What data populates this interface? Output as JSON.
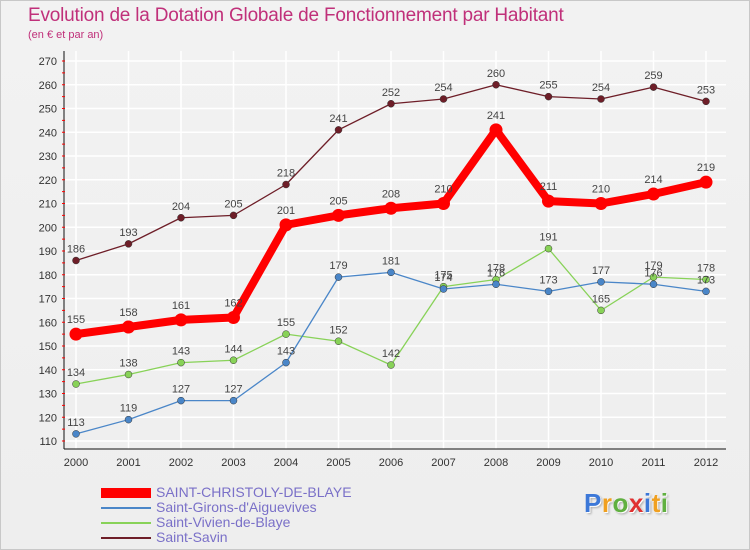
{
  "chart_data": {
    "type": "line",
    "title": "Evolution de la Dotation Globale de Fonctionnement par Habitant",
    "subtitle": "(en € et par an)",
    "categories": [
      "2000",
      "2001",
      "2002",
      "2003",
      "2004",
      "2005",
      "2006",
      "2007",
      "2008",
      "2009",
      "2010",
      "2011",
      "2012"
    ],
    "ylim": [
      110,
      270
    ],
    "yticks": [
      110,
      120,
      130,
      140,
      150,
      160,
      170,
      180,
      190,
      200,
      210,
      220,
      230,
      240,
      250,
      260,
      270
    ],
    "grid": true,
    "legend_position": "bottom-left",
    "series": [
      {
        "name": "Saint-Savin",
        "color": "#6e1e28",
        "values": [
          186,
          193,
          204,
          205,
          218,
          241,
          252,
          254,
          260,
          255,
          254,
          259,
          253
        ]
      },
      {
        "name": "Saint-Vivien-de-Blaye",
        "color": "#88d258",
        "values": [
          134,
          138,
          143,
          144,
          155,
          152,
          142,
          175,
          178,
          191,
          165,
          179,
          178
        ]
      },
      {
        "name": "Saint-Girons-d'Aiguevives",
        "color": "#4a86c8",
        "values": [
          113,
          119,
          127,
          127,
          143,
          179,
          181,
          174,
          176,
          173,
          177,
          176,
          173
        ]
      },
      {
        "name": "SAINT-CHRISTOLY-DE-BLAYE",
        "color": "#ff0000",
        "values": [
          155,
          158,
          161,
          162,
          201,
          205,
          208,
          210,
          241,
          211,
          210,
          214,
          219
        ]
      }
    ]
  },
  "legend": {
    "items": [
      {
        "label": "SAINT-CHRISTOLY-DE-BLAYE",
        "color": "#ff0000"
      },
      {
        "label": "Saint-Girons-d'Aiguevives",
        "color": "#4a86c8"
      },
      {
        "label": "Saint-Vivien-de-Blaye",
        "color": "#88d258"
      },
      {
        "label": "Saint-Savin",
        "color": "#6e1e28"
      }
    ]
  },
  "brand": {
    "letters": [
      "P",
      "r",
      "o",
      "x",
      "i",
      "t",
      "i"
    ],
    "colors": [
      "#3c78d8",
      "#f0a020",
      "#60b040",
      "#e03030",
      "#3c78d8",
      "#f0a020",
      "#60b040"
    ]
  }
}
